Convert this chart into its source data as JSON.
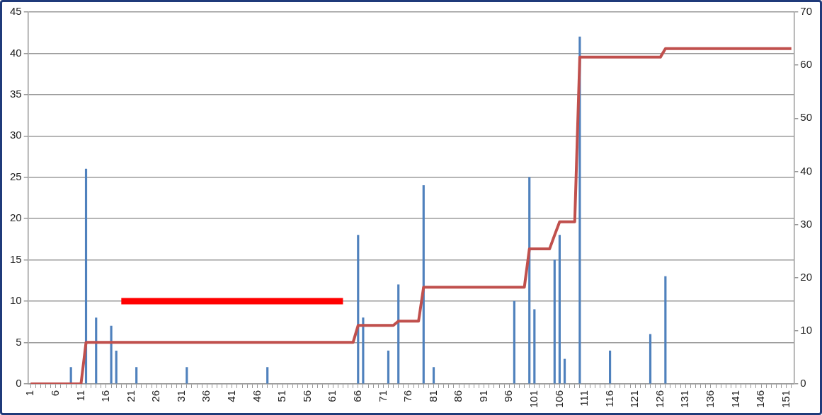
{
  "chart_data": {
    "type": "bar",
    "categories": [
      "1",
      null,
      null,
      null,
      null,
      "6",
      null,
      null,
      null,
      null,
      "11",
      null,
      null,
      null,
      null,
      "16",
      null,
      null,
      null,
      null,
      "21",
      null,
      null,
      null,
      null,
      "26",
      null,
      null,
      null,
      null,
      "31",
      null,
      null,
      null,
      null,
      "36",
      null,
      null,
      null,
      null,
      "41",
      null,
      null,
      null,
      null,
      "46",
      null,
      null,
      null,
      null,
      "51",
      null,
      null,
      null,
      null,
      "56",
      null,
      null,
      null,
      null,
      "61",
      null,
      null,
      null,
      null,
      "66",
      null,
      null,
      null,
      null,
      "71",
      null,
      null,
      null,
      null,
      "76",
      null,
      null,
      null,
      null,
      "81",
      null,
      null,
      null,
      null,
      "86",
      null,
      null,
      null,
      null,
      "91",
      null,
      null,
      null,
      null,
      "96",
      null,
      null,
      null,
      null,
      "101",
      null,
      null,
      null,
      null,
      "106",
      null,
      null,
      null,
      null,
      "111",
      null,
      null,
      null,
      null,
      "116",
      null,
      null,
      null,
      null,
      "121",
      null,
      null,
      null,
      null,
      "126",
      null,
      null,
      null,
      null,
      "131",
      null,
      null,
      null,
      null,
      "136",
      null,
      null,
      null,
      null,
      "141",
      null,
      null,
      null,
      null,
      "146",
      null,
      null,
      null,
      null,
      "151",
      null
    ],
    "series": [
      {
        "color": "#4f81bd",
        "values": [
          null,
          null,
          null,
          null,
          null,
          null,
          null,
          null,
          2,
          null,
          null,
          26,
          null,
          8,
          null,
          null,
          7,
          4,
          null,
          null,
          null,
          2,
          null,
          null,
          null,
          null,
          null,
          null,
          null,
          null,
          null,
          2,
          null,
          null,
          null,
          null,
          null,
          null,
          null,
          null,
          null,
          null,
          null,
          null,
          null,
          null,
          null,
          2,
          null,
          null,
          null,
          null,
          null,
          null,
          null,
          null,
          null,
          null,
          null,
          null,
          null,
          null,
          null,
          null,
          null,
          18,
          8,
          null,
          null,
          null,
          null,
          4,
          null,
          12,
          null,
          null,
          null,
          null,
          24,
          null,
          2,
          null,
          null,
          null,
          null,
          null,
          null,
          null,
          null,
          null,
          null,
          null,
          null,
          null,
          null,
          null,
          10,
          null,
          null,
          25,
          9,
          null,
          null,
          null,
          15,
          18,
          3,
          null,
          null,
          42,
          null,
          null,
          null,
          null,
          null,
          4,
          null,
          null,
          null,
          null,
          null,
          null,
          null,
          6,
          null,
          null,
          13,
          null,
          null,
          null,
          null,
          null,
          null,
          null,
          null,
          null,
          null,
          null,
          null,
          null,
          null,
          null,
          null,
          null,
          null,
          null,
          null,
          null,
          null,
          null,
          null,
          null
        ]
      },
      {
        "type": "line",
        "axis": "y2",
        "color": "#c0504d",
        "values": [
          0,
          0,
          0,
          0,
          0,
          0,
          0,
          0,
          0,
          0,
          0,
          7.8,
          7.8,
          7.8,
          7.8,
          7.8,
          7.8,
          7.8,
          7.8,
          7.8,
          7.8,
          7.8,
          7.8,
          7.8,
          7.8,
          7.8,
          7.8,
          7.8,
          7.8,
          7.8,
          7.8,
          7.8,
          7.8,
          7.8,
          7.8,
          7.8,
          7.8,
          7.8,
          7.8,
          7.8,
          7.8,
          7.8,
          7.8,
          7.8,
          7.8,
          7.8,
          7.8,
          7.8,
          7.8,
          7.8,
          7.8,
          7.8,
          7.8,
          7.8,
          7.8,
          7.8,
          7.8,
          7.8,
          7.8,
          7.8,
          7.8,
          7.8,
          7.8,
          7.8,
          7.8,
          11,
          11,
          11,
          11,
          11,
          11,
          11,
          11,
          11.8,
          11.8,
          11.8,
          11.8,
          11.8,
          18.2,
          18.2,
          18.2,
          18.2,
          18.2,
          18.2,
          18.2,
          18.2,
          18.2,
          18.2,
          18.2,
          18.2,
          18.2,
          18.2,
          18.2,
          18.2,
          18.2,
          18.2,
          18.2,
          18.2,
          18.2,
          25.4,
          25.4,
          25.4,
          25.4,
          25.4,
          28,
          30.5,
          30.5,
          30.5,
          30.5,
          61.5,
          61.5,
          61.5,
          61.5,
          61.5,
          61.5,
          61.5,
          61.5,
          61.5,
          61.5,
          61.5,
          61.5,
          61.5,
          61.5,
          61.5,
          61.5,
          61.5,
          63.1,
          63.1,
          63.1,
          63.1,
          63.1,
          63.1,
          63.1,
          63.1,
          63.1,
          63.1,
          63.1,
          63.1,
          63.1,
          63.1,
          63.1,
          63.1,
          63.1,
          63.1,
          63.1,
          63.1,
          63.1,
          63.1,
          63.1,
          63.1,
          63.1,
          63.1
        ]
      },
      {
        "type": "line",
        "color": "#ff0000",
        "values": [
          null,
          null,
          null,
          null,
          null,
          null,
          null,
          null,
          null,
          null,
          null,
          null,
          null,
          null,
          null,
          null,
          null,
          null,
          10,
          10,
          10,
          10,
          10,
          10,
          10,
          10,
          10,
          10,
          10,
          10,
          10,
          10,
          10,
          10,
          10,
          10,
          10,
          10,
          10,
          10,
          10,
          10,
          10,
          10,
          10,
          10,
          10,
          10,
          10,
          10,
          10,
          10,
          10,
          10,
          10,
          10,
          10,
          10,
          10,
          10,
          10,
          10,
          10,
          null,
          null,
          null,
          null,
          null,
          null,
          null,
          null,
          null,
          null,
          null,
          null,
          null,
          null,
          null,
          null,
          null,
          null,
          null,
          null,
          null,
          null,
          null,
          null,
          null,
          null,
          null,
          null,
          null,
          null,
          null,
          null,
          null,
          null,
          null,
          null,
          null,
          null,
          null,
          null,
          null,
          null,
          null,
          null,
          null,
          null,
          null,
          null,
          null,
          null,
          null,
          null,
          null,
          null,
          null,
          null,
          null,
          null,
          null,
          null,
          null,
          null,
          null,
          null,
          null,
          null,
          null,
          null,
          null,
          null,
          null,
          null,
          null,
          null,
          null,
          null,
          null,
          null,
          null,
          null,
          null,
          null,
          null,
          null,
          null,
          null,
          null,
          null,
          null
        ]
      }
    ],
    "ylim": [
      0,
      45
    ],
    "yticks": [
      0,
      5,
      10,
      15,
      20,
      25,
      30,
      35,
      40,
      45
    ],
    "y2lim": [
      0,
      70
    ],
    "y2ticks": [
      0,
      10,
      20,
      30,
      40,
      50,
      60,
      70
    ],
    "grid": "y",
    "legend": false
  }
}
